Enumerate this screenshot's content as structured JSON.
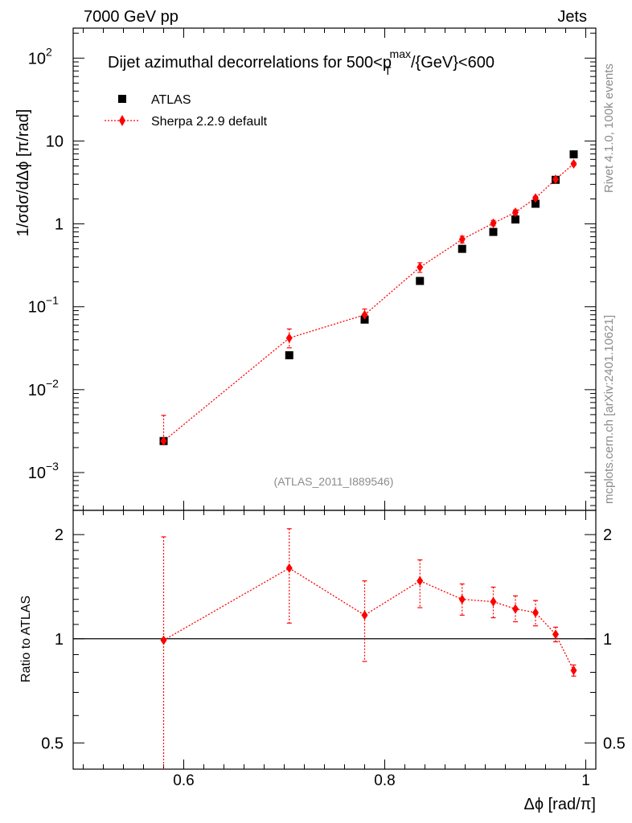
{
  "header": {
    "left": "7000 GeV pp",
    "right": "Jets"
  },
  "chart_data": {
    "type": "scatter",
    "title": "Dijet azimuthal decorrelations for 500<p",
    "title_sup": "max",
    "title_sub": "T",
    "title_tail": "/{GeV}<600",
    "analysis_tag": "(ATLAS_2011_I889546)",
    "side_labels": {
      "top": "Rivet 4.1.0,  100k events",
      "bottom": "mcplots.cern.ch [arXiv:2401.10621]"
    },
    "xlabel": "Δϕ [rad/π]",
    "ylabel": "1/σdσ/dΔϕ [π/rad]",
    "xlim": [
      0.49,
      1.01
    ],
    "x_ticks": [
      "0.6",
      "0.8",
      "1"
    ],
    "main": {
      "yscale": "log",
      "ylim": [
        0.00035,
        230
      ],
      "y_ticks": [
        {
          "base": "10",
          "exp": "2"
        },
        {
          "base": "10",
          "exp": ""
        },
        {
          "base": "1",
          "exp": ""
        },
        {
          "base": "10",
          "exp": "−1"
        },
        {
          "base": "10",
          "exp": "−2"
        },
        {
          "base": "10",
          "exp": "−3"
        }
      ],
      "series": [
        {
          "name": "ATLAS",
          "color": "#000000",
          "marker": "square",
          "x": [
            0.58,
            0.705,
            0.78,
            0.835,
            0.877,
            0.908,
            0.93,
            0.95,
            0.97,
            0.988
          ],
          "y": [
            0.0024,
            0.026,
            0.07,
            0.205,
            0.5,
            0.8,
            1.13,
            1.75,
            3.4,
            6.9
          ]
        },
        {
          "name": "Sherpa 2.2.9 default",
          "color": "#ff0000",
          "marker": "diamond",
          "x": [
            0.58,
            0.705,
            0.78,
            0.835,
            0.877,
            0.908,
            0.93,
            0.95,
            0.97,
            0.988
          ],
          "y": [
            0.0024,
            0.042,
            0.08,
            0.3,
            0.65,
            1.02,
            1.38,
            2.05,
            3.45,
            5.3
          ],
          "yerr_lo": [
            0.00234,
            0.032,
            0.068,
            0.26,
            0.59,
            0.95,
            1.29,
            1.95,
            3.3,
            5.05
          ],
          "yerr_hi": [
            0.0049,
            0.054,
            0.094,
            0.34,
            0.71,
            1.1,
            1.47,
            2.15,
            3.6,
            5.55
          ]
        }
      ]
    },
    "ratio": {
      "ylabel": "Ratio to ATLAS",
      "yscale": "log",
      "ylim": [
        0.42,
        2.35
      ],
      "y_ticks": [
        "2",
        "1",
        "0.5"
      ],
      "reference": 1.0,
      "series": {
        "name": "Sherpa 2.2.9 default / ATLAS",
        "color": "#ff0000",
        "x": [
          0.58,
          0.705,
          0.78,
          0.835,
          0.877,
          0.908,
          0.93,
          0.95,
          0.97,
          0.988
        ],
        "y": [
          0.99,
          1.6,
          1.17,
          1.47,
          1.3,
          1.28,
          1.22,
          1.19,
          1.03,
          0.81
        ],
        "yerr_lo": [
          0.34,
          1.11,
          0.86,
          1.23,
          1.17,
          1.15,
          1.12,
          1.09,
          0.98,
          0.78
        ],
        "yerr_hi": [
          1.97,
          2.08,
          1.47,
          1.69,
          1.44,
          1.41,
          1.33,
          1.29,
          1.08,
          0.84
        ]
      }
    }
  }
}
